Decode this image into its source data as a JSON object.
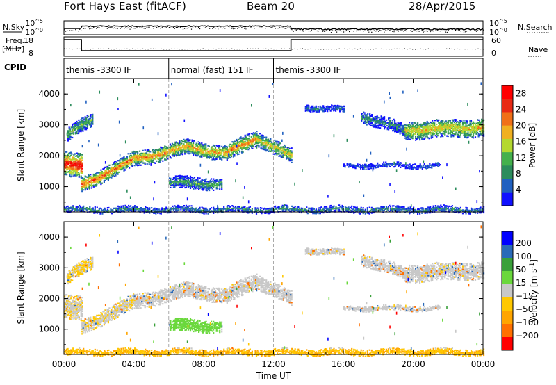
{
  "header": {
    "station": "Fort Hays East (fitACF)",
    "beam": "Beam 20",
    "date": "28/Apr/2015"
  },
  "top_panels": {
    "nsky_label": "N.Sky",
    "nsearch_label": "N.Search",
    "freq_label_1": "Freq.",
    "freq_label_2": "[MHz]",
    "nave_label": "Nave",
    "cpid_label": "CPID",
    "noise_ticks_left": [
      "10^5",
      "10^0"
    ],
    "noise_ticks_right": [
      "10^5",
      "10^0"
    ],
    "freq_ticks": [
      "18",
      "8"
    ],
    "nave_ticks": [
      "60",
      "0"
    ]
  },
  "cpid_segments": [
    {
      "label": "themis -3300 IF",
      "start_hour": 0,
      "end_hour": 6
    },
    {
      "label": "normal (fast) 151 IF",
      "start_hour": 6,
      "end_hour": 12
    },
    {
      "label": "themis -3300 IF",
      "start_hour": 12,
      "end_hour": 24
    }
  ],
  "colors": {
    "power": [
      "#1010ff",
      "#2060c0",
      "#2c8c5c",
      "#44b04c",
      "#b4d830",
      "#f0b020",
      "#f07018",
      "#e82a14",
      "#ff0000"
    ],
    "velocity": [
      "#ff0000",
      "#ff7000",
      "#ffa500",
      "#ffc800",
      "#c8c8c8",
      "#6ad83c",
      "#3aa03a",
      "#2a6ab8",
      "#0000ff"
    ]
  },
  "chart_data": [
    {
      "type": "heatmap",
      "name": "power",
      "xlabel": "Time UT",
      "ylabel": "Slant Range [km]",
      "x_ticks": [
        "00:00",
        "04:00",
        "08:00",
        "12:00",
        "16:00",
        "20:00",
        "00:00"
      ],
      "x_range_hours": [
        0,
        24
      ],
      "y_ticks": [
        1000,
        2000,
        3000,
        4000
      ],
      "y_range_km": [
        180,
        4500
      ],
      "colorbar_label": "Power [dB]",
      "colorbar_ticks": [
        4,
        8,
        12,
        16,
        20,
        24,
        28
      ],
      "colorbar_range": [
        0,
        30
      ],
      "echo_regions": [
        {
          "t0": 0.0,
          "t1": 1.0,
          "r_center_t0": 1750,
          "r_center_t1": 1650,
          "half_width": 380,
          "level": 0.92
        },
        {
          "t0": 0.2,
          "t1": 1.6,
          "r_center_t0": 2700,
          "r_center_t1": 3200,
          "half_width": 200,
          "level": 0.4
        },
        {
          "t0": 1.0,
          "t1": 2.5,
          "r_center_t0": 1050,
          "r_center_t1": 1500,
          "half_width": 220,
          "level": 0.78
        },
        {
          "t0": 2.5,
          "t1": 4.0,
          "r_center_t0": 1500,
          "r_center_t1": 1900,
          "half_width": 220,
          "level": 0.72
        },
        {
          "t0": 4.0,
          "t1": 7.0,
          "r_center_t0": 1900,
          "r_center_t1": 2300,
          "half_width": 230,
          "level": 0.68
        },
        {
          "t0": 7.0,
          "t1": 9.3,
          "r_center_t0": 2300,
          "r_center_t1": 2100,
          "half_width": 220,
          "level": 0.66
        },
        {
          "t0": 9.3,
          "t1": 11.0,
          "r_center_t0": 2100,
          "r_center_t1": 2600,
          "half_width": 240,
          "level": 0.7
        },
        {
          "t0": 11.0,
          "t1": 13.0,
          "r_center_t0": 2600,
          "r_center_t1": 2000,
          "half_width": 220,
          "level": 0.55
        },
        {
          "t0": 6.0,
          "t1": 9.0,
          "r_center_t0": 1150,
          "r_center_t1": 1100,
          "half_width": 170,
          "level": 0.35
        },
        {
          "t0": 13.8,
          "t1": 16.0,
          "r_center_t0": 3600,
          "r_center_t1": 3500,
          "half_width": 90,
          "level": 0.15
        },
        {
          "t0": 17.0,
          "t1": 19.5,
          "r_center_t0": 3300,
          "r_center_t1": 2850,
          "half_width": 180,
          "level": 0.25
        },
        {
          "t0": 19.5,
          "t1": 24.0,
          "r_center_t0": 2850,
          "r_center_t1": 2950,
          "half_width": 280,
          "level": 0.6
        },
        {
          "t0": 16.0,
          "t1": 21.5,
          "r_center_t0": 1700,
          "r_center_t1": 1700,
          "half_width": 60,
          "level": 0.12
        },
        {
          "t0": 0.0,
          "t1": 24.0,
          "r_center_t0": 270,
          "r_center_t1": 270,
          "half_width": 80,
          "level": 0.3
        }
      ]
    },
    {
      "type": "heatmap",
      "name": "velocity",
      "xlabel": "Time UT",
      "ylabel": "Slant Range [km]",
      "x_ticks": [
        "00:00",
        "04:00",
        "08:00",
        "12:00",
        "16:00",
        "20:00",
        "00:00"
      ],
      "x_range_hours": [
        0,
        24
      ],
      "y_ticks": [
        1000,
        2000,
        3000,
        4000
      ],
      "y_range_km": [
        180,
        4500
      ],
      "colorbar_label": "Velocity [m s^-1]",
      "colorbar_ticks": [
        200,
        100,
        50,
        15,
        -15,
        -50,
        -100,
        -200
      ],
      "colorbar_range": [
        -250,
        250
      ]
    }
  ]
}
